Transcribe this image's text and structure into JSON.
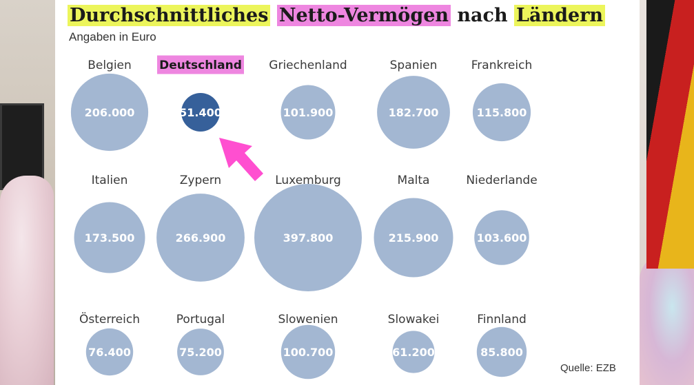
{
  "title": {
    "part1": "Durchschnittliches",
    "part2": "Netto-Vermögen",
    "part3": "nach",
    "part4": "Ländern"
  },
  "subtitle": "Angaben in Euro",
  "source": "Quelle: EZB",
  "colors": {
    "bubble": "#a3b7d2",
    "highlight_bubble": "#36609a",
    "highlight_label_bg": "#ee86e0",
    "title_yellow": "#ecf55b",
    "title_pink": "#ee86e0",
    "arrow": "#ff4fd0"
  },
  "chart_data": {
    "type": "bubble",
    "unit": "Euro",
    "highlight": "Deutschland",
    "points": [
      {
        "country": "Belgien",
        "value": 206000,
        "label": "206.000"
      },
      {
        "country": "Deutschland",
        "value": 51400,
        "label": "51.400"
      },
      {
        "country": "Griechenland",
        "value": 101900,
        "label": "101.900"
      },
      {
        "country": "Spanien",
        "value": 182700,
        "label": "182.700"
      },
      {
        "country": "Frankreich",
        "value": 115800,
        "label": "115.800"
      },
      {
        "country": "Italien",
        "value": 173500,
        "label": "173.500"
      },
      {
        "country": "Zypern",
        "value": 266900,
        "label": "266.900"
      },
      {
        "country": "Luxemburg",
        "value": 397800,
        "label": "397.800"
      },
      {
        "country": "Malta",
        "value": 215900,
        "label": "215.900"
      },
      {
        "country": "Niederlande",
        "value": 103600,
        "label": "103.600"
      },
      {
        "country": "Österreich",
        "value": 76400,
        "label": "76.400"
      },
      {
        "country": "Portugal",
        "value": 75200,
        "label": "75.200"
      },
      {
        "country": "Slowenien",
        "value": 100700,
        "label": "100.700"
      },
      {
        "country": "Slowakei",
        "value": 61200,
        "label": "61.200"
      },
      {
        "country": "Finnland",
        "value": 85800,
        "label": "85.800"
      }
    ]
  }
}
